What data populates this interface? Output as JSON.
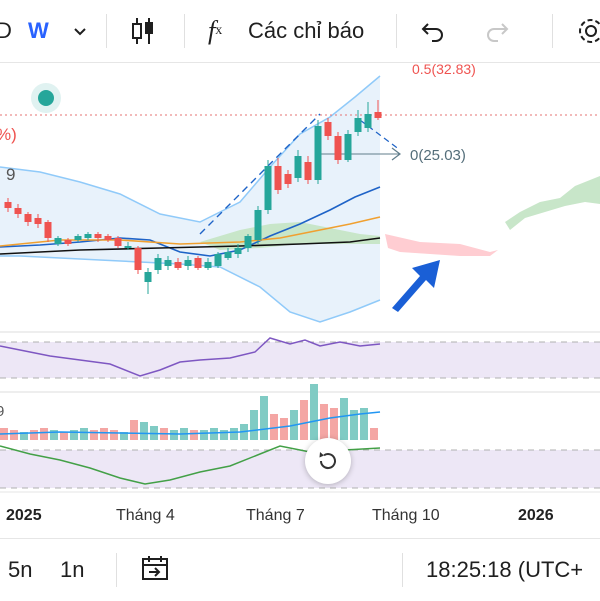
{
  "toolbar": {
    "interval_label": "W",
    "indicators_label": "Các chỉ báo"
  },
  "chart": {
    "fib_top_label": "0.5(32.83)",
    "fib_zero_label": "0(25.03)",
    "left_partial_pct": "%)",
    "left_partial_num": "9",
    "osc_partial_num": "9",
    "time_labels": [
      "2025",
      "Tháng 4",
      "Tháng 7",
      "Tháng 10",
      "2026"
    ],
    "colors": {
      "up": "#26a69a",
      "down": "#ef5350",
      "bb_line": "#90caf9",
      "ma_blue": "#1e63c7",
      "ma_orange": "#f0a030",
      "rsi": "#7e57c2",
      "cloud_green": "#a5d6a7",
      "cloud_red": "#ffcdd2",
      "arrow": "#1a5fd6"
    }
  },
  "bottombar": {
    "range_5y": "5n",
    "range_1y": "1n",
    "clock": "18:25:18 (UTC+"
  }
}
